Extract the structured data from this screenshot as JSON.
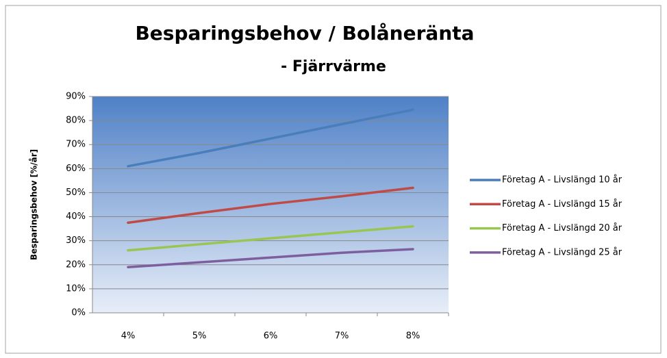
{
  "chart_data": {
    "type": "line",
    "title": "Besparingsbehov / Bolåneränta",
    "subtitle": "- Fjärrvärme",
    "y_label": "Besparingsbehov [%/år]",
    "categories": [
      "4%",
      "5%",
      "6%",
      "7%",
      "8%"
    ],
    "series": [
      {
        "name": "Företag A - Livslängd 10 år",
        "color": "#4a7ebb",
        "values": [
          61,
          66.5,
          72.5,
          78.5,
          84.5
        ]
      },
      {
        "name": "Företag A - Livslängd 15 år",
        "color": "#be4b48",
        "values": [
          37.5,
          41.5,
          45.3,
          48.5,
          52
        ]
      },
      {
        "name": "Företag A - Livslängd 20 år",
        "color": "#98c650",
        "values": [
          26,
          28.5,
          31,
          33.5,
          36
        ]
      },
      {
        "name": "Företag A - Livslängd 25 år",
        "color": "#7d5fa0",
        "values": [
          19,
          21,
          23,
          25,
          26.5
        ]
      }
    ],
    "ylim": [
      0,
      90
    ],
    "yticks": [
      {
        "value": 0,
        "label": "0%"
      },
      {
        "value": 10,
        "label": "10%"
      },
      {
        "value": 20,
        "label": "20%"
      },
      {
        "value": 30,
        "label": "30%"
      },
      {
        "value": 40,
        "label": "40%"
      },
      {
        "value": 50,
        "label": "50%"
      },
      {
        "value": 60,
        "label": "60%"
      },
      {
        "value": 70,
        "label": "70%"
      },
      {
        "value": 80,
        "label": "80%"
      },
      {
        "value": 90,
        "label": "90%"
      }
    ],
    "grid": true,
    "legend": "right"
  }
}
